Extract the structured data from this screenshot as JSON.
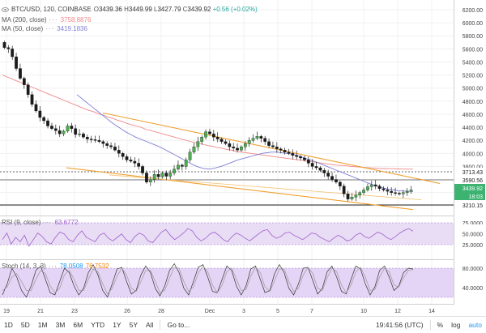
{
  "main": {
    "title": "BTC/USD, 120, COINBASE",
    "ohlc": {
      "o_label": "O",
      "o": "3439.36",
      "h_label": "H",
      "h": "3449.99",
      "l_label": "L",
      "l": "3427.79",
      "c_label": "C",
      "c": "3439.92",
      "change": "+0.56 (+0.02%)"
    },
    "ma200": {
      "label": "MA (200, close)",
      "dots": "···",
      "value": "3758.8876",
      "color": "#f08a8a"
    },
    "ma50": {
      "label": "MA (50, close)",
      "dots": "···",
      "value": "3419.1836",
      "color": "#7f7fd6"
    }
  },
  "rsi": {
    "label": "RSI (9, close)",
    "dots": "···",
    "value": "63.6772",
    "color": "#9c60c8"
  },
  "stoch": {
    "label": "Stoch (14, 3, 3)",
    "dots": "···",
    "k_value": "78.0508",
    "d_value": "76.7532",
    "k_color": "#2196f3",
    "d_color": "#f57c00"
  },
  "price_axis": [
    "6200.00",
    "6000.00",
    "5800.00",
    "5600.00",
    "5400.00",
    "5200.00",
    "5000.00",
    "4800.00",
    "4600.00",
    "4400.00",
    "4200.00",
    "4000.00",
    "3800.00",
    "3600.00",
    "3400.00",
    "3200.00"
  ],
  "price_tags": {
    "resistance": "3713.43",
    "level2": "3590.56",
    "last_price": "3439.92",
    "countdown": "18:03",
    "support": "3210.15"
  },
  "rsi_axis": [
    "75.0000",
    "50.0000",
    "25.0000"
  ],
  "stoch_axis": [
    "80.0000",
    "40.0000"
  ],
  "time_axis": [
    "19",
    "21",
    "23",
    "26",
    "28",
    "Dec",
    "3",
    "5",
    "7",
    "10",
    "12",
    "14"
  ],
  "toolbar": {
    "ranges": [
      "1D",
      "5D",
      "1M",
      "3M",
      "6M",
      "YTD",
      "1Y",
      "5Y",
      "All"
    ],
    "goto": "Go to...",
    "clock": "19:41:56 (UTC)",
    "percent": "%",
    "log": "log",
    "auto": "auto"
  },
  "chart_data": {
    "type": "candlestick",
    "symbol": "BTC/USD",
    "interval": "120",
    "ylim": [
      3100,
      6250
    ],
    "close": [
      5620,
      5600,
      5480,
      5300,
      5150,
      5050,
      4900,
      4750,
      4650,
      4550,
      4500,
      4420,
      4380,
      4350,
      4300,
      4340,
      4420,
      4380,
      4290,
      4300,
      4250,
      4220,
      4210,
      4200,
      4180,
      4150,
      4120,
      4100,
      4050,
      4000,
      3950,
      3900,
      3880,
      3850,
      3800,
      3700,
      3560,
      3600,
      3680,
      3640,
      3700,
      3650,
      3700,
      3760,
      3820,
      3800,
      3900,
      4020,
      4100,
      4180,
      4250,
      4330,
      4300,
      4250,
      4220,
      4180,
      4150,
      4100,
      4080,
      4050,
      4100,
      4150,
      4200,
      4230,
      4260,
      4230,
      4180,
      4120,
      4100,
      4070,
      4050,
      4020,
      4000,
      3970,
      3950,
      3930,
      3900,
      3850,
      3800,
      3780,
      3740,
      3700,
      3650,
      3600,
      3560,
      3500,
      3380,
      3300,
      3330,
      3360,
      3400,
      3440,
      3490,
      3520,
      3500,
      3460,
      3440,
      3420,
      3400,
      3390,
      3380,
      3400,
      3420,
      3440
    ],
    "ma200": [
      5200,
      5170,
      5140,
      5110,
      5080,
      5050,
      5020,
      4990,
      4960,
      4930,
      4900,
      4870,
      4840,
      4810,
      4780,
      4750,
      4720,
      4690,
      4660,
      4640,
      4610,
      4590,
      4560,
      4540,
      4510,
      4490,
      4460,
      4440,
      4420,
      4400,
      4370,
      4350,
      4330,
      4310,
      4290,
      4270,
      4250,
      4230,
      4210,
      4190,
      4170,
      4160,
      4140,
      4120,
      4110,
      4090,
      4080,
      4060,
      4050,
      4030,
      4020,
      4010,
      4000,
      3990,
      3980,
      3970,
      3960,
      3950,
      3940,
      3930,
      3920,
      3910,
      3900,
      3890,
      3880,
      3870,
      3860,
      3850,
      3840,
      3830,
      3820,
      3815,
      3810,
      3800,
      3795,
      3790,
      3785,
      3780,
      3775,
      3770,
      3768,
      3766,
      3764,
      3762,
      3760,
      3759,
      3758
    ],
    "ma50": [
      4900,
      4840,
      4780,
      4720,
      4660,
      4600,
      4540,
      4480,
      4430,
      4380,
      4330,
      4290,
      4250,
      4220,
      4190,
      4160,
      4130,
      4100,
      4060,
      4020,
      3980,
      3940,
      3900,
      3860,
      3820,
      3790,
      3770,
      3760,
      3770,
      3790,
      3810,
      3840,
      3870,
      3900,
      3920,
      3940,
      3960,
      3980,
      4000,
      4010,
      4020,
      4020,
      4010,
      4000,
      3990,
      3970,
      3950,
      3920,
      3900,
      3870,
      3840,
      3810,
      3780,
      3750,
      3720,
      3690,
      3660,
      3630,
      3600,
      3570,
      3540,
      3510,
      3490,
      3470,
      3450,
      3440,
      3430,
      3425,
      3420,
      3419
    ],
    "trendlines": [
      {
        "name": "upper",
        "from_price": 4620,
        "to_price": 3540
      },
      {
        "name": "lower",
        "from_price": 3780,
        "to_price": 3140
      },
      {
        "name": "mid",
        "from_price": 3670,
        "to_price": 3290
      }
    ],
    "rsi_ylim": [
      0,
      100
    ],
    "rsi": [
      45,
      60,
      35,
      50,
      40,
      55,
      30,
      45,
      60,
      52,
      40,
      35,
      50,
      62,
      58,
      45,
      40,
      55,
      65,
      50,
      45,
      40,
      55,
      60,
      48,
      42,
      50,
      58,
      45,
      38,
      52,
      60,
      55,
      42,
      38,
      50,
      62,
      68,
      55,
      45,
      52,
      60,
      70,
      65,
      50,
      42,
      48,
      58,
      62,
      55,
      45,
      40,
      52,
      60,
      55,
      48,
      42,
      50,
      58,
      65,
      68,
      55,
      48,
      52,
      60,
      62,
      55,
      50,
      45,
      52,
      60,
      58,
      50,
      45,
      40,
      48,
      55,
      50,
      42,
      45,
      55,
      60,
      52,
      48,
      55,
      62,
      58,
      50,
      45,
      52,
      60,
      66,
      70,
      64
    ],
    "stoch_ylim": [
      0,
      100
    ],
    "stoch_k": [
      20,
      45,
      80,
      60,
      30,
      15,
      40,
      75,
      85,
      55,
      25,
      20,
      50,
      80,
      70,
      40,
      20,
      35,
      70,
      88,
      65,
      30,
      15,
      45,
      78,
      82,
      50,
      22,
      30,
      65,
      85,
      70,
      35,
      18,
      40,
      75,
      90,
      70,
      35,
      20,
      50,
      82,
      88,
      60,
      28,
      25,
      55,
      85,
      75,
      40,
      20,
      40,
      78,
      85,
      55,
      25,
      30,
      68,
      88,
      70,
      35,
      20,
      45,
      80,
      82,
      52,
      22,
      35,
      72,
      85,
      60,
      28,
      22,
      55,
      85,
      78,
      45,
      20,
      38,
      75,
      85,
      60,
      30,
      40,
      70,
      80,
      78
    ],
    "stoch_d": [
      30,
      38,
      60,
      68,
      50,
      30,
      30,
      55,
      75,
      68,
      40,
      25,
      35,
      65,
      75,
      55,
      30,
      30,
      55,
      78,
      72,
      45,
      22,
      35,
      62,
      80,
      65,
      35,
      28,
      50,
      75,
      75,
      50,
      25,
      30,
      58,
      82,
      80,
      50,
      28,
      38,
      68,
      85,
      72,
      42,
      25,
      42,
      72,
      80,
      55,
      30,
      32,
      62,
      82,
      70,
      38,
      28,
      52,
      78,
      78,
      50,
      28,
      35,
      65,
      82,
      68,
      35,
      30,
      58,
      80,
      72,
      42,
      25,
      42,
      72,
      82,
      60,
      30,
      32,
      60,
      80,
      72,
      42,
      38,
      58,
      75,
      77
    ]
  }
}
